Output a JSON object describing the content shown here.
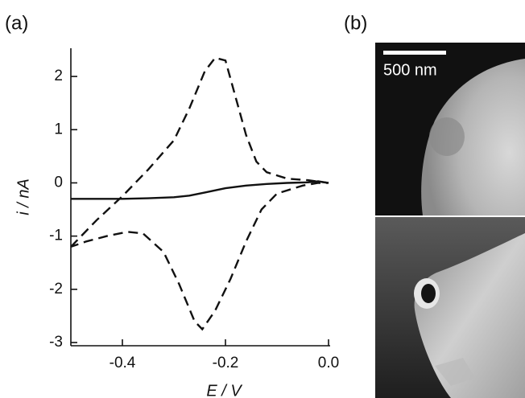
{
  "chart_data": {
    "type": "line",
    "panel_labels": [
      "(a)",
      "(b)"
    ],
    "xlabel": "E / V",
    "ylabel": "i / nA",
    "scale_bar": "500 nm",
    "xlim": [
      -0.5,
      0.0
    ],
    "xticks": [
      -0.4,
      -0.2,
      {
        "value": 0,
        "label": "0.0"
      }
    ],
    "ylim": [
      -3,
      2.5
    ],
    "yticks": [
      2,
      1,
      0,
      -1,
      -2,
      -3
    ],
    "series": [
      {
        "color": "#111111",
        "dash": true,
        "x": [
          -0.5,
          -0.45,
          -0.4,
          -0.35,
          -0.3,
          -0.27,
          -0.24,
          -0.22,
          -0.2,
          -0.18,
          -0.16,
          -0.14,
          -0.12,
          -0.08,
          -0.04,
          0.0,
          -0.02,
          -0.05,
          -0.1,
          -0.13,
          -0.16,
          -0.19,
          -0.22,
          -0.245,
          -0.26,
          -0.29,
          -0.32,
          -0.36,
          -0.39,
          -0.43,
          -0.47,
          -0.5
        ],
        "values": [
          -1.2,
          -0.7,
          -0.25,
          0.25,
          0.8,
          1.4,
          2.1,
          2.35,
          2.3,
          1.6,
          0.9,
          0.4,
          0.2,
          0.08,
          0.05,
          0.0,
          0.0,
          -0.05,
          -0.2,
          -0.5,
          -1.1,
          -1.8,
          -2.4,
          -2.75,
          -2.6,
          -1.9,
          -1.3,
          -0.95,
          -0.92,
          -1.0,
          -1.1,
          -1.2
        ]
      },
      {
        "color": "#111111",
        "dash": false,
        "x": [
          -0.5,
          -0.45,
          -0.4,
          -0.35,
          -0.3,
          -0.27,
          -0.24,
          -0.2,
          -0.16,
          -0.12,
          -0.08,
          -0.04,
          -0.02,
          0.0
        ],
        "values": [
          -0.3,
          -0.3,
          -0.3,
          -0.29,
          -0.27,
          -0.24,
          -0.18,
          -0.1,
          -0.05,
          -0.02,
          0.0,
          0.01,
          0.03,
          0.0
        ]
      }
    ]
  }
}
